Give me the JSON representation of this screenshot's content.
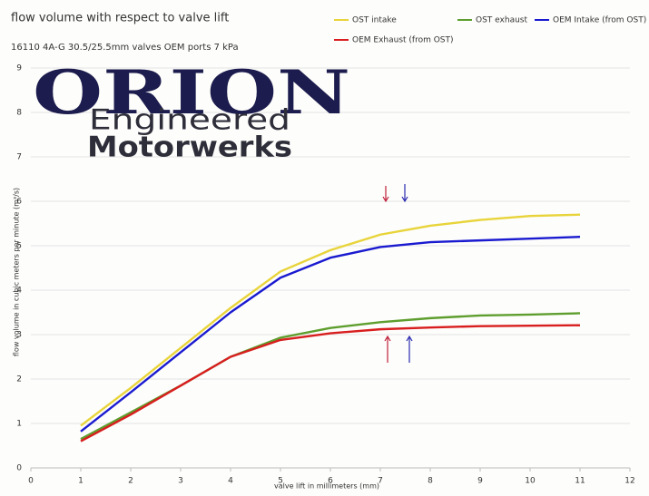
{
  "chart_data": {
    "type": "line",
    "title": "flow volume with respect to valve lift",
    "subtitle": "16110 4A-G 30.5/25.5mm valves OEM ports 7 kPa",
    "x_label": "valve lift in millimeters (mm)",
    "y_label": "flow volume in cubic meters per minute (m³/s)",
    "annotations": [
      "ORION",
      "Engineered",
      "Motorwerks"
    ],
    "x": [
      1,
      2,
      3,
      4,
      5,
      6,
      7,
      8,
      9,
      10,
      11
    ],
    "series": [
      {
        "name": "OST intake",
        "color": "#e8d43a",
        "values": [
          0.95,
          1.8,
          2.7,
          3.6,
          4.42,
          4.9,
          5.25,
          5.45,
          5.58,
          5.67,
          5.7
        ]
      },
      {
        "name": "OST exhaust",
        "color": "#5e9e2e",
        "values": [
          0.65,
          1.25,
          1.85,
          2.5,
          2.93,
          3.15,
          3.28,
          3.37,
          3.43,
          3.45,
          3.48
        ]
      },
      {
        "name": "OEM Intake (from OST)",
        "color": "#1a1ad0",
        "values": [
          0.82,
          1.7,
          2.6,
          3.5,
          4.28,
          4.73,
          4.97,
          5.08,
          5.12,
          5.16,
          5.2
        ]
      },
      {
        "name": "OEM Exhaust (from OST)",
        "color": "#d81e1e",
        "values": [
          0.6,
          1.2,
          1.85,
          2.5,
          2.88,
          3.03,
          3.12,
          3.16,
          3.19,
          3.2,
          3.21
        ]
      }
    ],
    "xlim": [
      0,
      12
    ],
    "xticks": [
      0,
      1,
      2,
      3,
      4,
      5,
      6,
      7,
      8,
      9,
      10,
      11,
      12
    ],
    "ylim": [
      0,
      9
    ],
    "yticks": [
      0,
      1,
      2,
      3,
      4,
      5,
      6,
      7,
      8,
      9
    ],
    "grid": true,
    "legend": "top"
  }
}
